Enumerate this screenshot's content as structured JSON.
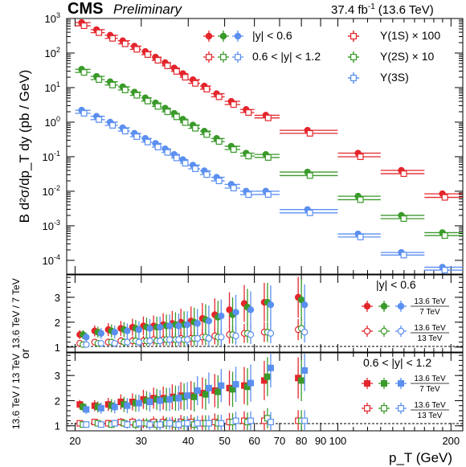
{
  "header": {
    "experiment": "CMS",
    "status": "Preliminary",
    "lumi": "37.4 fb",
    "lumi_exp": "-1",
    "energy": "(13.6 TeV)"
  },
  "colors": {
    "ups1s": "#e3262c",
    "ups2s": "#3a9a2a",
    "ups3s": "#5b8ff0"
  },
  "chart_data": [
    {
      "type": "scatter",
      "panel": "top",
      "xlabel": "p_T (GeV)",
      "ylabel": "B d²σ/dp_T dy (pb / GeV)",
      "xscale": "log",
      "yscale": "log",
      "xlim": [
        19,
        215
      ],
      "ylim": [
        4e-05,
        1000
      ],
      "x_ticks": [
        "20",
        "30",
        "40",
        "50",
        "60",
        "70",
        "80",
        "90",
        "100",
        "200"
      ],
      "y_ticks": [
        "10^-4",
        "10^-3",
        "10^-2",
        "10^-1",
        "10^0",
        "10^1",
        "10^2",
        "10^3"
      ],
      "legend": {
        "central": "|y| < 0.6",
        "forward": "0.6 < |y| < 1.2",
        "u1s": "Υ(1S) × 100",
        "u2s": "Υ(2S) × 10",
        "u3s": "Υ(3S)"
      },
      "bins": [
        [
          20,
          22
        ],
        [
          22,
          24
        ],
        [
          24,
          26
        ],
        [
          26,
          28
        ],
        [
          28,
          30
        ],
        [
          30,
          32
        ],
        [
          32,
          34
        ],
        [
          34,
          36
        ],
        [
          36,
          38
        ],
        [
          38,
          40
        ],
        [
          40,
          43
        ],
        [
          43,
          46
        ],
        [
          46,
          50
        ],
        [
          50,
          55
        ],
        [
          55,
          60
        ],
        [
          60,
          70
        ],
        [
          70,
          100
        ],
        [
          100,
          130
        ],
        [
          130,
          170
        ],
        [
          170,
          215
        ]
      ],
      "series": [
        {
          "name": "Υ(1S) × 100",
          "rapidity": "|y| < 0.6",
          "values": [
            720,
            450,
            310,
            215,
            150,
            105,
            72,
            50,
            35,
            24,
            16,
            10.5,
            6.3,
            3.8,
            2.2,
            1.5,
            0.55,
            0.12,
            0.038,
            0.008
          ]
        },
        {
          "name": "Υ(1S) × 100",
          "rapidity": "0.6 < |y| < 1.2",
          "values": [
            650,
            410,
            280,
            195,
            135,
            95,
            65,
            45,
            31,
            21,
            14,
            9.5,
            5.7,
            3.4,
            2.0,
            1.4,
            0.5,
            0.105,
            0.034,
            0.007
          ]
        },
        {
          "name": "Υ(2S) × 10",
          "rapidity": "|y| < 0.6",
          "values": [
            32,
            20,
            14,
            10,
            7,
            4.8,
            3.4,
            2.4,
            1.7,
            1.15,
            0.78,
            0.52,
            0.32,
            0.19,
            0.12,
            0.11,
            0.034,
            0.0068,
            0.0019,
            0.0006
          ]
        },
        {
          "name": "Υ(2S) × 10",
          "rapidity": "0.6 < |y| < 1.2",
          "values": [
            29,
            18,
            12.5,
            9,
            6.3,
            4.3,
            3.0,
            2.1,
            1.5,
            1.02,
            0.7,
            0.46,
            0.29,
            0.17,
            0.11,
            0.1,
            0.03,
            0.006,
            0.0017,
            0.00055
          ]
        },
        {
          "name": "Υ(3S)",
          "rapidity": "|y| < 0.6",
          "values": [
            2.1,
            1.4,
            0.95,
            0.65,
            0.45,
            0.32,
            0.23,
            0.16,
            0.11,
            0.078,
            0.054,
            0.037,
            0.024,
            0.015,
            0.0095,
            0.0095,
            0.0028,
            0.00055,
            0.00016,
            6e-05
          ]
        },
        {
          "name": "Υ(3S)",
          "rapidity": "0.6 < |y| < 1.2",
          "values": [
            1.9,
            1.25,
            0.85,
            0.58,
            0.4,
            0.28,
            0.2,
            0.14,
            0.097,
            0.068,
            0.047,
            0.032,
            0.021,
            0.013,
            0.0084,
            0.0085,
            0.0025,
            0.0005,
            0.00015,
            5.5e-05
          ]
        }
      ]
    },
    {
      "type": "scatter",
      "panel": "middle",
      "rapidity": "|y| < 0.6",
      "ylabel_main": "13.6 TeV / 7 TeV",
      "ylabel_or": "or",
      "ylim": [
        0.8,
        3.9
      ],
      "y_ticks": [
        "1",
        "2",
        "3"
      ],
      "legend": {
        "region": "|y| < 0.6",
        "ratio7_num": "13.6 TeV",
        "ratio7_den": "7 TeV",
        "ratio13_num": "13.6 TeV",
        "ratio13_den": "13 TeV"
      },
      "x": [
        21,
        23,
        25,
        27,
        29,
        31,
        33,
        35,
        37,
        39,
        41.5,
        44.5,
        48,
        52.5,
        57.5,
        65,
        80
      ],
      "series": [
        {
          "name": "Υ(1S) 13.6/7",
          "values": [
            1.5,
            1.65,
            1.7,
            1.75,
            1.8,
            1.85,
            1.85,
            1.9,
            1.95,
            2.0,
            2.05,
            2.15,
            2.3,
            2.5,
            2.75,
            2.8,
            3.0
          ]
        },
        {
          "name": "Υ(2S) 13.6/7",
          "values": [
            1.5,
            1.6,
            1.65,
            1.7,
            1.75,
            1.8,
            1.8,
            1.85,
            1.9,
            1.9,
            2.0,
            2.1,
            2.2,
            2.3,
            2.6,
            2.8,
            2.9
          ]
        },
        {
          "name": "Υ(3S) 13.6/7",
          "values": [
            1.4,
            1.55,
            1.6,
            1.65,
            1.7,
            1.75,
            1.8,
            1.85,
            1.85,
            1.9,
            1.95,
            2.05,
            2.25,
            2.4,
            2.5,
            2.7,
            2.7
          ]
        },
        {
          "name": "Υ(1S) 13.6/13",
          "values": [
            1.15,
            1.2,
            1.2,
            1.25,
            1.25,
            1.25,
            1.3,
            1.3,
            1.3,
            1.35,
            1.35,
            1.4,
            1.45,
            1.5,
            1.55,
            1.6,
            1.7
          ]
        },
        {
          "name": "Υ(2S) 13.6/13",
          "values": [
            1.1,
            1.15,
            1.2,
            1.2,
            1.25,
            1.25,
            1.25,
            1.3,
            1.3,
            1.3,
            1.35,
            1.4,
            1.4,
            1.5,
            1.55,
            1.6,
            1.75
          ]
        },
        {
          "name": "Υ(3S) 13.6/13",
          "values": [
            1.1,
            1.15,
            1.15,
            1.2,
            1.2,
            1.25,
            1.25,
            1.3,
            1.3,
            1.3,
            1.35,
            1.35,
            1.4,
            1.45,
            1.5,
            1.55,
            1.6
          ]
        }
      ]
    },
    {
      "type": "scatter",
      "panel": "bottom",
      "rapidity": "0.6 < |y| < 1.2",
      "ylabel": "13.6 TeV / 13 TeV",
      "xlabel": "p_T (GeV)",
      "ylim": [
        0.8,
        3.9
      ],
      "y_ticks": [
        "1",
        "2",
        "3"
      ],
      "legend": {
        "region": "0.6 < |y| < 1.2",
        "ratio7_num": "13.6 TeV",
        "ratio7_den": "7 TeV",
        "ratio13_num": "13.6 TeV",
        "ratio13_den": "13 TeV"
      },
      "x": [
        21,
        23,
        25,
        27,
        29,
        31,
        33,
        35,
        37,
        39,
        41.5,
        44.5,
        48,
        52.5,
        57.5,
        65,
        80
      ],
      "series": [
        {
          "name": "Υ(1S) 13.6/7",
          "values": [
            1.85,
            1.8,
            1.85,
            1.95,
            1.95,
            2.05,
            2.1,
            2.1,
            2.15,
            2.2,
            2.2,
            2.3,
            2.4,
            2.5,
            2.6,
            2.8,
            2.9
          ]
        },
        {
          "name": "Υ(2S) 13.6/7",
          "values": [
            1.75,
            1.75,
            1.8,
            1.85,
            1.9,
            2.0,
            2.05,
            2.05,
            2.1,
            2.15,
            2.15,
            2.25,
            2.35,
            2.45,
            2.55,
            2.95,
            2.8
          ]
        },
        {
          "name": "Υ(3S) 13.6/7",
          "values": [
            1.65,
            1.7,
            1.75,
            1.8,
            1.9,
            1.95,
            2.0,
            2.05,
            2.1,
            2.2,
            2.4,
            2.5,
            2.6,
            2.65,
            2.7,
            3.3,
            3.2
          ]
        },
        {
          "name": "Υ(1S) 13.6/13",
          "values": [
            1.1,
            1.15,
            1.1,
            1.15,
            1.15,
            1.1,
            1.15,
            1.15,
            1.1,
            1.15,
            1.15,
            1.1,
            1.15,
            1.15,
            1.2,
            1.2,
            1.2
          ]
        },
        {
          "name": "Υ(2S) 13.6/13",
          "values": [
            1.05,
            1.1,
            1.05,
            1.1,
            1.05,
            1.1,
            1.05,
            1.1,
            1.05,
            1.1,
            1.05,
            1.1,
            1.1,
            1.15,
            1.15,
            1.3,
            1.2
          ]
        },
        {
          "name": "Υ(3S) 13.6/13",
          "values": [
            1.05,
            1.05,
            1.1,
            1.05,
            1.1,
            1.05,
            1.05,
            1.1,
            1.05,
            1.1,
            1.1,
            1.1,
            1.1,
            1.2,
            1.2,
            1.15,
            1.2
          ]
        }
      ]
    }
  ]
}
